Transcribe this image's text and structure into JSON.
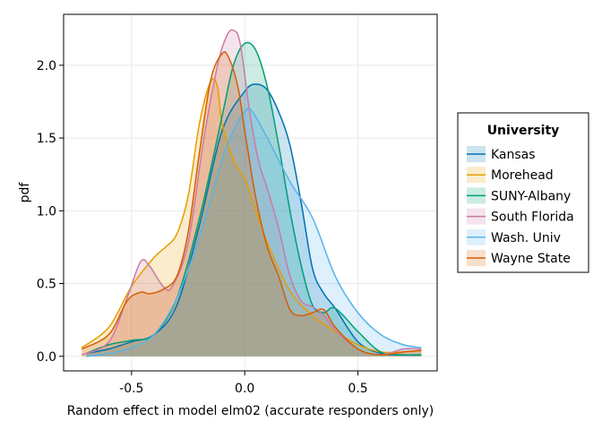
{
  "chart_data": {
    "type": "area",
    "xlabel": "Random effect in model elm02 (accurate responders only)",
    "ylabel": "pdf",
    "xlim": [
      -0.8,
      0.85
    ],
    "ylim": [
      -0.1,
      2.35
    ],
    "xticks": [
      -0.5,
      0.0,
      0.5
    ],
    "yticks": [
      0.0,
      0.5,
      1.0,
      1.5,
      2.0
    ],
    "xtick_labels": [
      "-0.5",
      "0.0",
      "0.5"
    ],
    "ytick_labels": [
      "0.0",
      "0.5",
      "1.0",
      "1.5",
      "2.0"
    ],
    "grid": true,
    "legend": {
      "title": "University",
      "placement": "right"
    },
    "series": [
      {
        "name": "Kansas",
        "color": "#0072B2",
        "x": [
          -0.7,
          -0.6,
          -0.5,
          -0.4,
          -0.3,
          -0.2,
          -0.1,
          0.0,
          0.05,
          0.1,
          0.15,
          0.2,
          0.25,
          0.3,
          0.35,
          0.4,
          0.5,
          0.6,
          0.7,
          0.78
        ],
        "y": [
          0.02,
          0.05,
          0.1,
          0.15,
          0.35,
          0.9,
          1.55,
          1.82,
          1.87,
          1.83,
          1.68,
          1.45,
          1.05,
          0.6,
          0.43,
          0.33,
          0.1,
          0.02,
          0.01,
          0.01
        ]
      },
      {
        "name": "Morehead",
        "color": "#E69F00",
        "x": [
          -0.72,
          -0.6,
          -0.5,
          -0.4,
          -0.35,
          -0.3,
          -0.25,
          -0.2,
          -0.15,
          -0.12,
          -0.1,
          -0.05,
          0.0,
          0.05,
          0.1,
          0.2,
          0.3,
          0.4,
          0.5,
          0.6,
          0.7,
          0.78
        ],
        "y": [
          0.06,
          0.2,
          0.48,
          0.68,
          0.75,
          0.84,
          1.1,
          1.6,
          1.89,
          1.85,
          1.6,
          1.35,
          1.22,
          1.0,
          0.78,
          0.45,
          0.28,
          0.17,
          0.08,
          0.03,
          0.03,
          0.04
        ]
      },
      {
        "name": "SUNY-Albany",
        "color": "#009E73",
        "x": [
          -0.7,
          -0.6,
          -0.5,
          -0.4,
          -0.3,
          -0.2,
          -0.1,
          -0.05,
          0.0,
          0.05,
          0.1,
          0.15,
          0.2,
          0.25,
          0.3,
          0.35,
          0.4,
          0.5,
          0.6,
          0.7,
          0.78
        ],
        "y": [
          0.02,
          0.08,
          0.11,
          0.15,
          0.4,
          0.95,
          1.65,
          2.0,
          2.15,
          2.1,
          1.85,
          1.45,
          1.0,
          0.62,
          0.35,
          0.3,
          0.33,
          0.17,
          0.03,
          0.01,
          0.01
        ]
      },
      {
        "name": "South Florida",
        "color": "#CC79A7",
        "x": [
          -0.72,
          -0.6,
          -0.52,
          -0.46,
          -0.42,
          -0.36,
          -0.32,
          -0.25,
          -0.18,
          -0.12,
          -0.08,
          -0.05,
          -0.02,
          0.02,
          0.06,
          0.1,
          0.15,
          0.2,
          0.25,
          0.3,
          0.35,
          0.4,
          0.5,
          0.6,
          0.7,
          0.78
        ],
        "y": [
          0.01,
          0.1,
          0.4,
          0.65,
          0.62,
          0.48,
          0.48,
          0.78,
          1.5,
          2.0,
          2.2,
          2.24,
          2.15,
          1.7,
          1.35,
          1.15,
          0.88,
          0.55,
          0.38,
          0.34,
          0.28,
          0.18,
          0.05,
          0.01,
          0.05,
          0.05
        ]
      },
      {
        "name": "Wash. Univ",
        "color": "#56B4E9",
        "x": [
          -0.7,
          -0.6,
          -0.5,
          -0.4,
          -0.3,
          -0.2,
          -0.1,
          -0.05,
          0.0,
          0.03,
          0.1,
          0.2,
          0.3,
          0.4,
          0.5,
          0.6,
          0.7,
          0.78
        ],
        "y": [
          0.0,
          0.02,
          0.06,
          0.15,
          0.4,
          0.82,
          1.35,
          1.55,
          1.68,
          1.69,
          1.5,
          1.2,
          0.95,
          0.55,
          0.3,
          0.15,
          0.08,
          0.06
        ]
      },
      {
        "name": "Wayne State",
        "color": "#D55E00",
        "x": [
          -0.72,
          -0.6,
          -0.52,
          -0.46,
          -0.42,
          -0.36,
          -0.3,
          -0.25,
          -0.2,
          -0.15,
          -0.1,
          -0.07,
          -0.03,
          0.0,
          0.05,
          0.1,
          0.15,
          0.2,
          0.25,
          0.3,
          0.35,
          0.4,
          0.5,
          0.6,
          0.7,
          0.78
        ],
        "y": [
          0.05,
          0.15,
          0.38,
          0.44,
          0.43,
          0.46,
          0.55,
          0.85,
          1.4,
          1.9,
          2.08,
          2.05,
          1.85,
          1.55,
          1.08,
          0.75,
          0.55,
          0.32,
          0.28,
          0.3,
          0.32,
          0.2,
          0.05,
          0.01,
          0.03,
          0.04
        ]
      }
    ]
  }
}
